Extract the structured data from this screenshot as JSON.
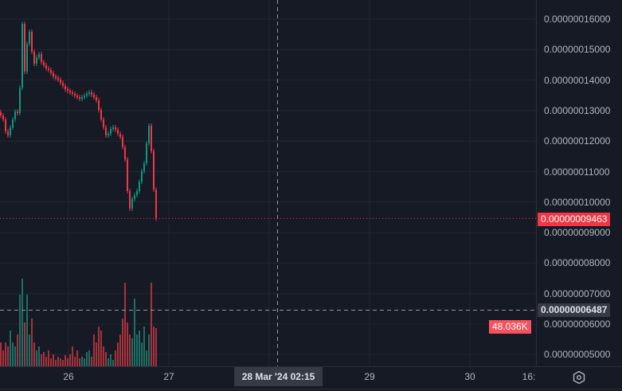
{
  "chart_data": {
    "type": "candlestick",
    "price_unit": "1e-8",
    "first_open": 12.95,
    "close": [
      12.84,
      12.71,
      12.32,
      12.19,
      12.45,
      12.71,
      12.97,
      12.92,
      13.75,
      15.84,
      14.28,
      15.19,
      15.58,
      14.93,
      14.54,
      14.75,
      14.85,
      14.59,
      14.49,
      14.38,
      14.33,
      14.23,
      14.12,
      14.07,
      14.02,
      13.91,
      13.81,
      13.7,
      13.65,
      13.6,
      13.55,
      13.49,
      13.44,
      13.39,
      13.44,
      13.49,
      13.55,
      13.6,
      13.52,
      13.44,
      13.34,
      13.02,
      12.71,
      12.45,
      12.19,
      12.24,
      12.4,
      12.45,
      12.37,
      12.24,
      12.14,
      11.8,
      11.4,
      10.36,
      9.79,
      10.1,
      10.23,
      10.36,
      10.67,
      11.01,
      11.27,
      11.93,
      12.5,
      11.67,
      10.41,
      9.463
    ],
    "volume_k": [
      30,
      20,
      30,
      25,
      45,
      30,
      25,
      40,
      90,
      110,
      55,
      90,
      40,
      60,
      30,
      20,
      25,
      15,
      18,
      12,
      20,
      10,
      15,
      8,
      12,
      10,
      8,
      14,
      10,
      15,
      25,
      12,
      20,
      10,
      12,
      10,
      18,
      20,
      12,
      40,
      30,
      50,
      45,
      25,
      18,
      10,
      15,
      8,
      20,
      30,
      40,
      60,
      105,
      55,
      40,
      35,
      85,
      40,
      45,
      30,
      50,
      20,
      40,
      105,
      50,
      48.036
    ],
    "y_ticks": [
      "0.00000016000",
      "0.00000015000",
      "0.00000014000",
      "0.00000013000",
      "0.00000012000",
      "0.00000011000",
      "0.00000010000",
      "0.00000009000",
      "0.00000008000",
      "0.00000007000",
      "0.00000006000",
      "0.00000005000"
    ],
    "y_tick_values": [
      16,
      15,
      14,
      13,
      12,
      11,
      10,
      9,
      8,
      7,
      6,
      5
    ],
    "x_ticks": [
      "26",
      "27",
      "29",
      "30",
      "16:"
    ],
    "last_price": "0.00000009463",
    "crosshair_price": "0.00000006487",
    "crosshair_time": "28 Mar '24   02:15",
    "last_volume": "48.036K",
    "grid": true,
    "colors": {
      "up": "#089981",
      "down": "#f23645",
      "vol_up": "#1e6f64",
      "vol_down": "#a8323c",
      "background": "#161a25",
      "grid": "#232734"
    }
  }
}
